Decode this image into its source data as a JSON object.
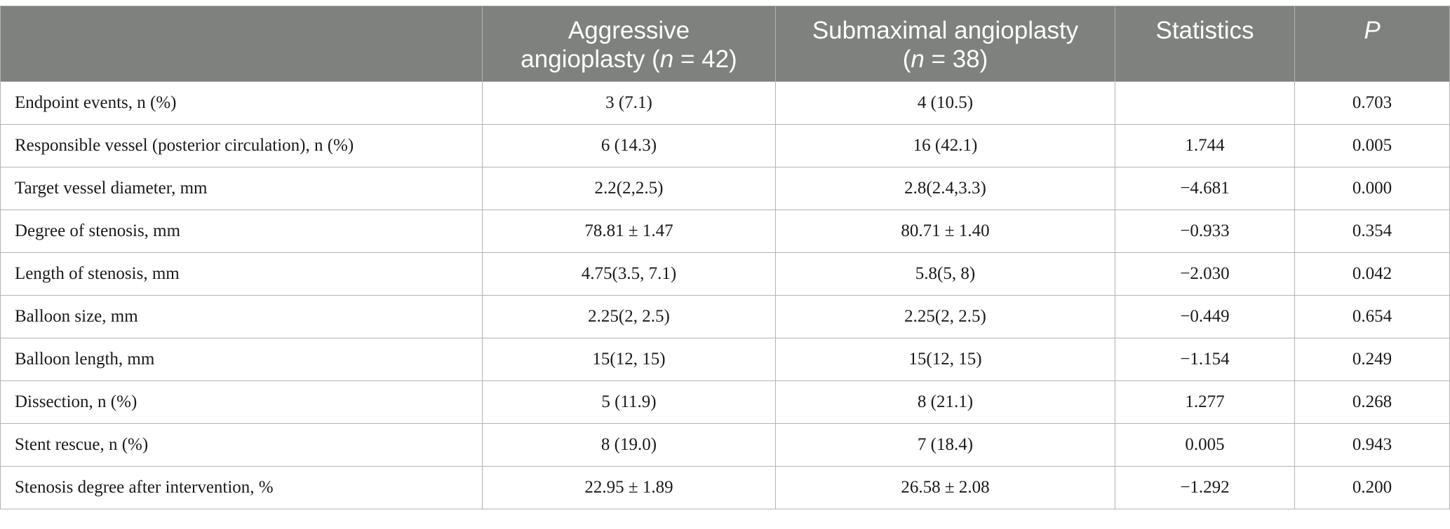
{
  "table": {
    "headers": [
      {
        "text": "",
        "line1": "",
        "line2_pre": "",
        "line2_italic": "",
        "line2_post": ""
      },
      {
        "line1": "Aggressive",
        "line2_pre": "angioplasty (",
        "line2_italic": "n",
        "line2_post": " = 42)"
      },
      {
        "line1": "Submaximal angioplasty",
        "line2_pre": "(",
        "line2_italic": "n",
        "line2_post": " = 38)"
      },
      {
        "line1": "Statistics",
        "line2_pre": "",
        "line2_italic": "",
        "line2_post": ""
      },
      {
        "line1": "",
        "line2_pre": "",
        "line2_italic": "P",
        "line2_post": ""
      }
    ],
    "rows": [
      [
        "Endpoint events, n (%)",
        "3 (7.1)",
        "4 (10.5)",
        "",
        "0.703"
      ],
      [
        "Responsible vessel (posterior circulation), n (%)",
        "6 (14.3)",
        "16 (42.1)",
        "1.744",
        "0.005"
      ],
      [
        "Target vessel diameter, mm",
        "2.2(2,2.5)",
        "2.8(2.4,3.3)",
        "−4.681",
        "0.000"
      ],
      [
        "Degree of stenosis, mm",
        "78.81 ± 1.47",
        "80.71 ± 1.40",
        "−0.933",
        "0.354"
      ],
      [
        "Length of stenosis, mm",
        "4.75(3.5, 7.1)",
        "5.8(5, 8)",
        "−2.030",
        "0.042"
      ],
      [
        "Balloon size, mm",
        "2.25(2, 2.5)",
        "2.25(2, 2.5)",
        "−0.449",
        "0.654"
      ],
      [
        "Balloon length, mm",
        "15(12, 15)",
        "15(12, 15)",
        "−1.154",
        "0.249"
      ],
      [
        "Dissection, n (%)",
        "5 (11.9)",
        "8 (21.1)",
        "1.277",
        "0.268"
      ],
      [
        "Stent rescue, n (%)",
        "8 (19.0)",
        "7 (18.4)",
        "0.005",
        "0.943"
      ],
      [
        "Stenosis degree after intervention, %",
        "22.95 ± 1.89",
        "26.58 ± 2.08",
        "−1.292",
        "0.200"
      ]
    ]
  },
  "colors": {
    "header_bg": "#7f817e",
    "header_text": "#ffffff",
    "border": "#b3b3b3",
    "cell_text": "#1a1a1a"
  }
}
